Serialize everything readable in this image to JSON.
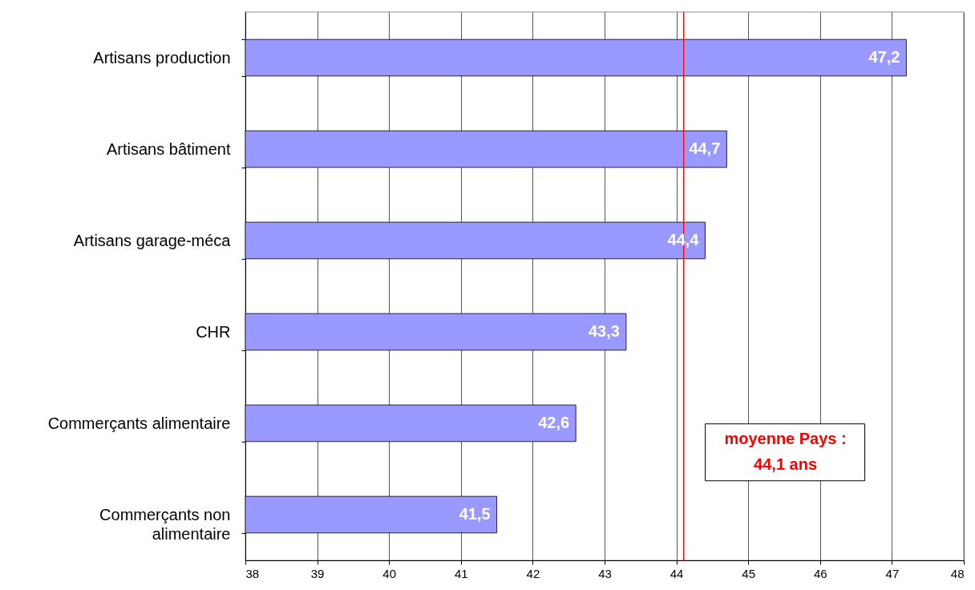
{
  "chart_data": {
    "type": "bar",
    "orientation": "horizontal",
    "categories": [
      "Artisans production",
      "Artisans bâtiment",
      "Artisans garage-méca",
      "CHR",
      "Commerçants alimentaire",
      "Commerçants non alimentaire"
    ],
    "values": [
      47.2,
      44.7,
      44.4,
      43.3,
      42.6,
      41.5
    ],
    "color": "#9999ff",
    "value_labels": [
      "47,2",
      "44,7",
      "44,4",
      "43,3",
      "42,6",
      "41,5"
    ],
    "xlim": [
      38,
      48
    ],
    "xticks": [
      38,
      39,
      40,
      41,
      42,
      43,
      44,
      45,
      46,
      47,
      48
    ],
    "grid": "x",
    "ref_lines": [
      {
        "axis": "x",
        "value": 44.1,
        "label": "moyenne Pays : 44,1 ans",
        "color": "#ff0000"
      }
    ]
  }
}
